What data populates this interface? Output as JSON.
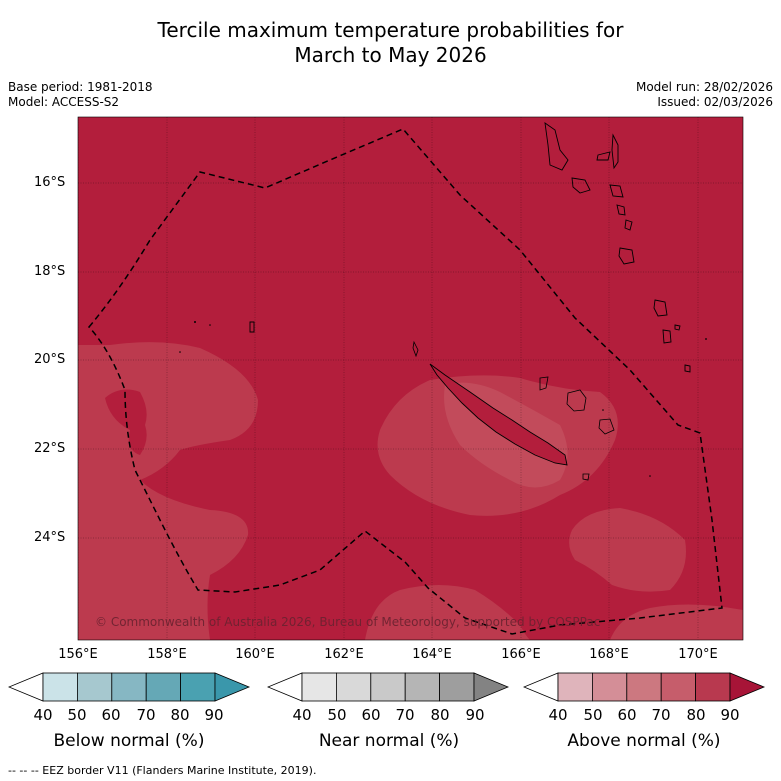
{
  "title": {
    "line1": "Tercile maximum temperature probabilities for",
    "line2": "March to May 2026"
  },
  "meta": {
    "base_period": "Base period: 1981-2018",
    "model": "Model: ACCESS-S2",
    "model_run": "Model run: 28/02/2026",
    "issued": "Issued: 02/03/2026"
  },
  "map": {
    "lat_labels": [
      "16°S",
      "18°S",
      "20°S",
      "22°S",
      "24°S"
    ],
    "lon_labels": [
      "156°E",
      "158°E",
      "160°E",
      "162°E",
      "164°E",
      "166°E",
      "168°E",
      "170°E"
    ],
    "credit": "© Commonwealth of Australia 2026, Bureau of Meteorology, supported by COSPPac",
    "colors": {
      "above_high": "#b31e3c",
      "above_mid": "#bc3a4e",
      "coast": "#000000",
      "eez_line": "#000000"
    }
  },
  "legend": {
    "ticks": [
      "40",
      "50",
      "60",
      "70",
      "80",
      "90"
    ],
    "below": {
      "title": "Below normal (%)",
      "colors": [
        "#ffffff",
        "#cbe3e8",
        "#a6c8cf",
        "#86b7c3",
        "#65a8b6",
        "#4aa1b1",
        "#3a97ab"
      ]
    },
    "near": {
      "title": "Near normal (%)",
      "colors": [
        "#ffffff",
        "#e6e6e6",
        "#d9d9d9",
        "#c9c9c9",
        "#b5b5b5",
        "#9e9e9e",
        "#838383"
      ]
    },
    "above": {
      "title": "Above normal (%)",
      "colors": [
        "#ffffff",
        "#dfb4bb",
        "#d48e97",
        "#cc7880",
        "#c65d6b",
        "#b8394f",
        "#a71437"
      ]
    }
  },
  "footer": {
    "eez_note": "--  --  -- EEZ border V11 (Flanders Marine Institute, 2019)."
  }
}
